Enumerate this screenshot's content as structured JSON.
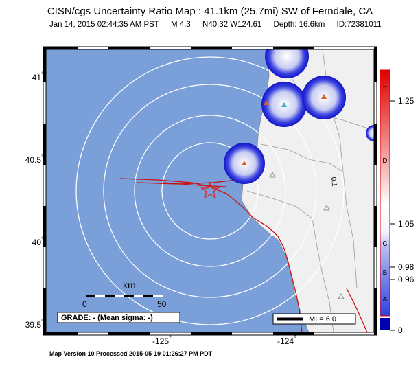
{
  "header": {
    "title": "CISN/cgs Uncertainty Ratio Map : 41.1km (25.7mi) SW of Ferndale, CA",
    "datetime": "Jan 14, 2015 02:44:35 AM PST",
    "magnitude": "M 4.3",
    "location": "N40.32 W124.61",
    "depth": "Depth: 16.6km",
    "event_id": "ID:72381011"
  },
  "axes": {
    "lat_labels": [
      "41",
      "40.5",
      "40",
      "39.5"
    ],
    "lon_labels": [
      "-125",
      "-124"
    ],
    "degree_symbol": "°"
  },
  "scale_bar": {
    "unit": "km",
    "left": "0",
    "right": "50"
  },
  "grade_box": "GRADE: - (Mean sigma: -)",
  "mi_legend": "MI = 6.0",
  "contour_label": "0.1",
  "colorbar": {
    "value_labels": [
      "1.25",
      "1.05",
      "0.98",
      "0.96",
      "0"
    ],
    "letters": [
      "F",
      "D",
      "C",
      "B",
      "A"
    ],
    "colors": {
      "top": "#e00000",
      "mid": "#ffffff",
      "low": "#3040e0",
      "bottom": "#0000b0"
    }
  },
  "footer": "Map Version 10 Processed 2015-05-19 01:26:27 PM PDT",
  "colors": {
    "ocean": "#7a9fd9",
    "land": "#f0f0f0",
    "fault": "#cc1111",
    "epicenter": "#dd2222",
    "station_blue": "#1414c8"
  }
}
